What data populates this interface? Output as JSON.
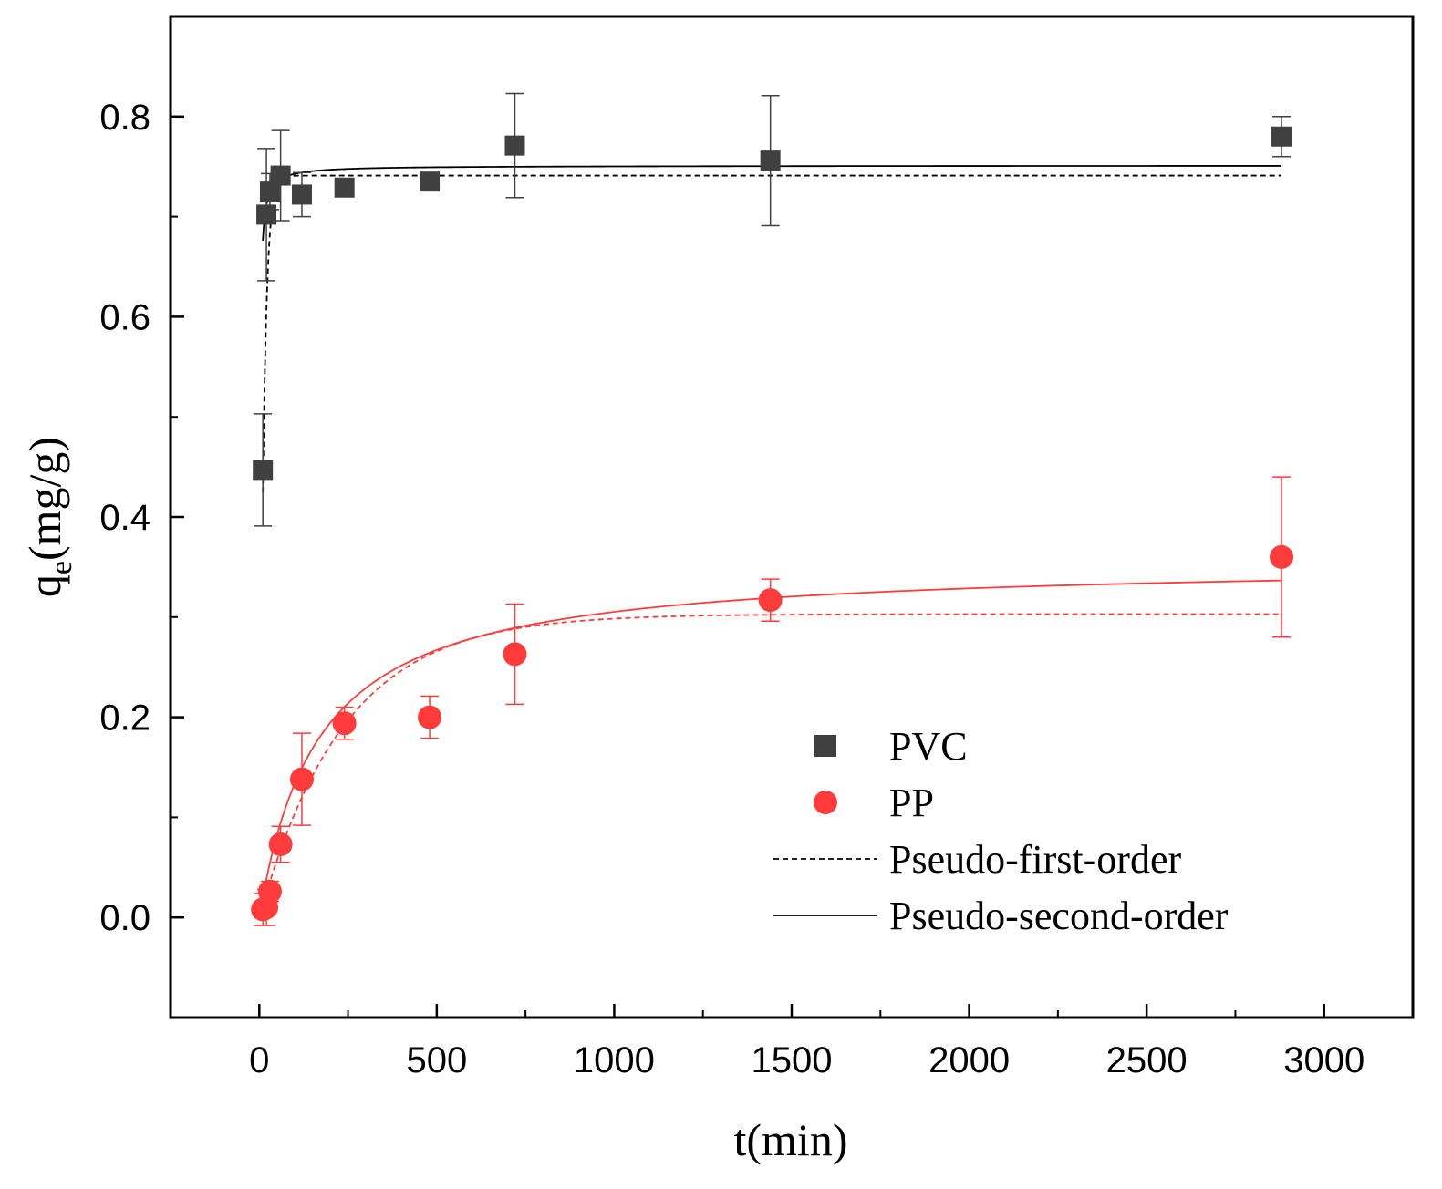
{
  "chart_data": {
    "type": "scatter",
    "title": "",
    "xlabel": "t(min)",
    "ylabel_main": "q",
    "ylabel_sub": "e",
    "ylabel_rest": "(mg/g)",
    "xlim": [
      -250,
      3250
    ],
    "ylim": [
      -0.1,
      0.9
    ],
    "x_ticks": [
      0,
      500,
      1000,
      1500,
      2000,
      2500,
      3000
    ],
    "x_tick_labels": [
      "0",
      "500",
      "1000",
      "1500",
      "2000",
      "2500",
      "3000"
    ],
    "x_minor_ticks": [
      250,
      750,
      1250,
      1750,
      2250,
      2750
    ],
    "y_ticks": [
      0.0,
      0.2,
      0.4,
      0.6,
      0.8
    ],
    "y_tick_labels": [
      "0.0",
      "0.2",
      "0.4",
      "0.6",
      "0.8"
    ],
    "y_minor_ticks": [
      -0.1,
      0.1,
      0.3,
      0.5,
      0.7
    ],
    "grid": false,
    "legend_position": "bottom-right",
    "series": [
      {
        "name": "PVC",
        "marker": "square",
        "color": "#404040",
        "x": [
          10,
          20,
          30,
          60,
          120,
          240,
          480,
          720,
          1440,
          2880
        ],
        "y": [
          0.447,
          0.702,
          0.725,
          0.741,
          0.722,
          0.729,
          0.735,
          0.771,
          0.756,
          0.78
        ],
        "err": [
          0.056,
          0.066,
          0.018,
          0.045,
          0.022,
          0.007,
          0.007,
          0.052,
          0.065,
          0.02
        ]
      },
      {
        "name": "PP",
        "marker": "circle",
        "color": "#ff3b3b",
        "x": [
          10,
          20,
          30,
          60,
          120,
          240,
          480,
          720,
          1440,
          2880
        ],
        "y": [
          0.008,
          0.01,
          0.026,
          0.073,
          0.138,
          0.194,
          0.2,
          0.263,
          0.317,
          0.36
        ],
        "err": [
          0.016,
          0.018,
          0.01,
          0.018,
          0.046,
          0.016,
          0.021,
          0.05,
          0.021,
          0.08
        ]
      }
    ],
    "fits": [
      {
        "name": "Pseudo-first-order",
        "style": "dashed",
        "series": "PVC",
        "model": "pfo",
        "qe": 0.741,
        "k": 0.085,
        "color": "#000000"
      },
      {
        "name": "Pseudo-second-order",
        "style": "solid",
        "series": "PVC",
        "model": "pso",
        "qe": 0.751,
        "k": 1.2,
        "color": "#000000"
      },
      {
        "name": "Pseudo-first-order",
        "style": "dashed",
        "series": "PP",
        "model": "pfo",
        "qe": 0.303,
        "k": 0.0042,
        "color": "#ff3b3b"
      },
      {
        "name": "Pseudo-second-order",
        "style": "solid",
        "series": "PP",
        "model": "pso",
        "qe": 0.356,
        "k": 0.0169,
        "color": "#ff3b3b"
      }
    ],
    "fit_x_range": [
      10,
      2880
    ],
    "legend": [
      {
        "label": "PVC",
        "kind": "square",
        "color": "#404040"
      },
      {
        "label": "PP",
        "kind": "circle",
        "color": "#ff3b3b"
      },
      {
        "label": "Pseudo-first-order",
        "kind": "dashed",
        "color": "#000000"
      },
      {
        "label": "Pseudo-second-order",
        "kind": "solid",
        "color": "#000000"
      }
    ]
  }
}
